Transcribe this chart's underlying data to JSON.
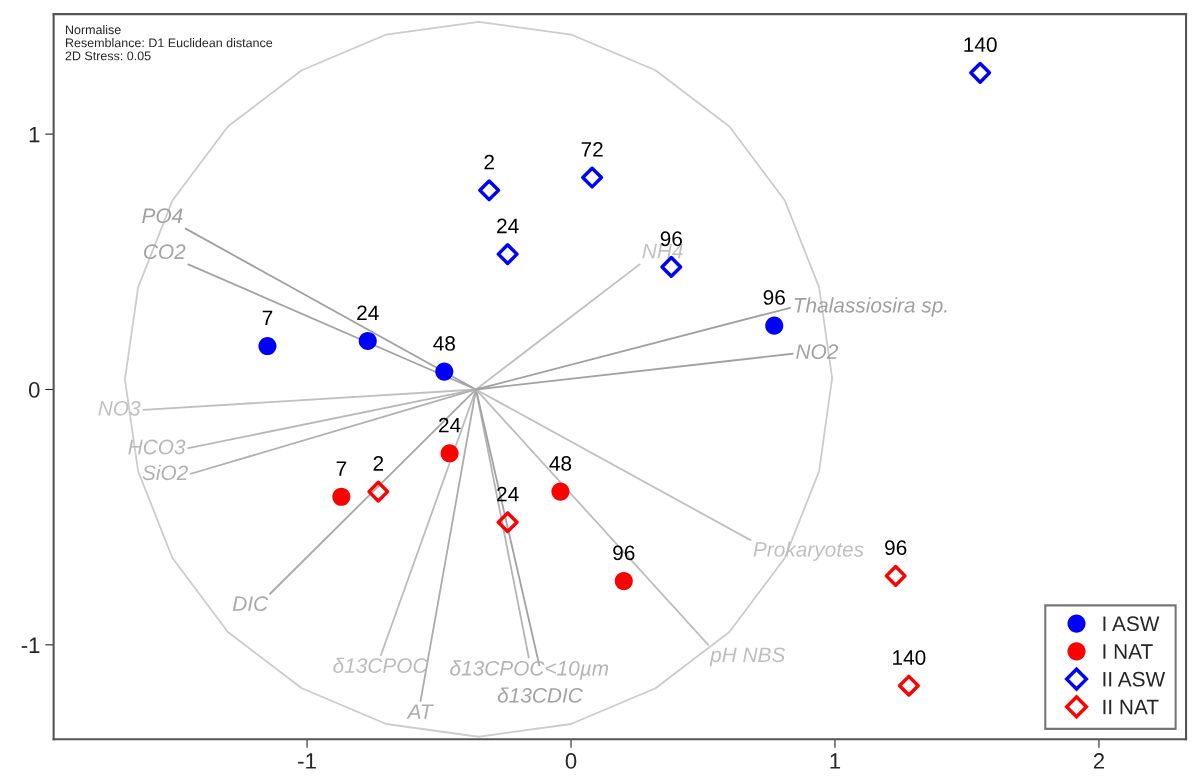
{
  "chart_data": {
    "type": "scatter",
    "xlim": [
      -1.96,
      2.33
    ],
    "ylim": [
      -1.37,
      1.47
    ],
    "xticks": [
      -1,
      0,
      1,
      2
    ],
    "yticks": [
      -1,
      0,
      1
    ],
    "grid": false,
    "legend": "bottom right",
    "annotations": [
      "Normalise",
      "Resemblance: D1 Euclidean distance",
      "2D Stress: 0.05",
      {
        "text": "7",
        "x": -1.15,
        "y": 0.17
      },
      {
        "text": "24",
        "x": -0.77,
        "y": 0.19
      },
      {
        "text": "48",
        "x": -0.48,
        "y": 0.07
      },
      {
        "text": "96",
        "x": 0.77,
        "y": 0.25
      },
      {
        "text": "7",
        "x": -0.87,
        "y": -0.42
      },
      {
        "text": "24",
        "x": -0.46,
        "y": -0.25
      },
      {
        "text": "48",
        "x": -0.04,
        "y": -0.4
      },
      {
        "text": "96",
        "x": 0.2,
        "y": -0.75
      },
      {
        "text": "2",
        "x": -0.31,
        "y": 0.78
      },
      {
        "text": "24",
        "x": -0.24,
        "y": 0.53
      },
      {
        "text": "72",
        "x": 0.08,
        "y": 0.83
      },
      {
        "text": "96",
        "x": 0.38,
        "y": 0.48
      },
      {
        "text": "140",
        "x": 1.55,
        "y": 1.24
      },
      {
        "text": "2",
        "x": -0.73,
        "y": -0.4
      },
      {
        "text": "24",
        "x": -0.24,
        "y": -0.52
      },
      {
        "text": "96",
        "x": 1.23,
        "y": -0.73
      },
      {
        "text": "140",
        "x": 1.28,
        "y": -1.16
      }
    ],
    "series": [
      {
        "type": "line",
        "color": "#cccccc",
        "marker": "none",
        "x": [
          0.99,
          0.94,
          0.81,
          0.6,
          0.32,
          0.0,
          -0.35,
          -0.7,
          -1.02,
          -1.3,
          -1.51,
          -1.64,
          -1.69,
          -1.64,
          -1.51,
          -1.3,
          -1.02,
          -0.7,
          -0.35,
          0.0,
          0.32,
          0.6,
          0.81,
          0.94,
          0.99
        ],
        "values": [
          0.04,
          0.4,
          0.74,
          1.03,
          1.25,
          1.39,
          1.44,
          1.39,
          1.25,
          1.03,
          0.74,
          0.4,
          0.04,
          -0.32,
          -0.66,
          -0.95,
          -1.17,
          -1.31,
          -1.36,
          -1.31,
          -1.17,
          -0.95,
          -0.66,
          -0.32,
          0.05
        ]
      },
      {
        "type": "line",
        "name": "PO4",
        "color": "#a0a0a0",
        "marker": "none",
        "x": [
          -0.36,
          -1.46
        ],
        "values": [
          0.0,
          0.63
        ]
      },
      {
        "type": "line",
        "name": "CO2",
        "color": "#a4a4a4",
        "marker": "none",
        "x": [
          -0.36,
          -1.45
        ],
        "values": [
          0.0,
          0.49
        ]
      },
      {
        "type": "line",
        "name": "NO3",
        "color": "#c0c0c0",
        "marker": "none",
        "x": [
          -0.36,
          -1.62
        ],
        "values": [
          0.0,
          -0.08
        ]
      },
      {
        "type": "line",
        "name": "HCO3",
        "color": "#b8b8b8",
        "marker": "none",
        "x": [
          -0.36,
          -1.45
        ],
        "values": [
          0.0,
          -0.23
        ]
      },
      {
        "type": "line",
        "name": "SiO2",
        "color": "#b0b0b0",
        "marker": "none",
        "x": [
          -0.36,
          -1.44
        ],
        "values": [
          0.0,
          -0.33
        ]
      },
      {
        "type": "line",
        "name": "DIC",
        "color": "#a8a8a8",
        "marker": "none",
        "x": [
          -0.36,
          -1.14
        ],
        "values": [
          0.0,
          -0.8
        ]
      },
      {
        "type": "line",
        "name": "δ13CPOC",
        "color": "#bcbcbc",
        "marker": "none",
        "x": [
          -0.36,
          -0.72
        ],
        "values": [
          0.0,
          -1.04
        ]
      },
      {
        "type": "line",
        "name": "AT",
        "color": "#acacac",
        "marker": "none",
        "x": [
          -0.36,
          -0.57
        ],
        "values": [
          0.0,
          -1.22
        ]
      },
      {
        "type": "line",
        "name": "δ13CPOC<10µm",
        "color": "#b4b4b4",
        "marker": "none",
        "x": [
          -0.36,
          -0.16
        ],
        "values": [
          0.0,
          -1.05
        ]
      },
      {
        "type": "line",
        "name": "δ13CDIC",
        "color": "#a2a2a2",
        "marker": "none",
        "x": [
          -0.36,
          -0.12
        ],
        "values": [
          0.0,
          -1.08
        ]
      },
      {
        "type": "line",
        "name": "pH NBS",
        "color": "#bebebe",
        "marker": "none",
        "x": [
          -0.36,
          0.52
        ],
        "values": [
          0.0,
          -1.0
        ]
      },
      {
        "type": "line",
        "name": "Prokaryotes",
        "color": "#c0c0c0",
        "marker": "none",
        "x": [
          -0.36,
          0.68
        ],
        "values": [
          0.0,
          -0.59
        ]
      },
      {
        "type": "line",
        "name": "NH4",
        "color": "#c0c0c0",
        "marker": "none",
        "x": [
          -0.36,
          0.26
        ],
        "values": [
          0.0,
          0.49
        ]
      },
      {
        "type": "line",
        "name": "Thalassiosira sp.",
        "color": "#a0a0a0",
        "marker": "none",
        "x": [
          -0.36,
          0.83
        ],
        "values": [
          0.0,
          0.32
        ]
      },
      {
        "type": "line",
        "name": "NO2",
        "color": "#a2a2a2",
        "marker": "none",
        "x": [
          -0.36,
          0.84
        ],
        "values": [
          0.0,
          0.14
        ]
      },
      {
        "name": "I ASW",
        "color": "#0000ff",
        "marker": "circle",
        "x": [
          -1.15,
          -0.77,
          -0.48,
          0.77
        ],
        "values": [
          0.17,
          0.19,
          0.07,
          0.25
        ]
      },
      {
        "name": "I NAT",
        "color": "#ff0000",
        "marker": "circle",
        "x": [
          -0.87,
          -0.46,
          -0.04,
          0.2
        ],
        "values": [
          -0.42,
          -0.25,
          -0.4,
          -0.75
        ]
      },
      {
        "name": "II ASW",
        "color": "#0000ff",
        "marker": "diamond",
        "x": [
          -0.31,
          -0.24,
          0.08,
          0.38,
          1.55
        ],
        "values": [
          0.78,
          0.53,
          0.83,
          0.48,
          1.24
        ]
      },
      {
        "name": "II NAT",
        "color": "#ff0000",
        "marker": "diamond",
        "x": [
          -0.73,
          -0.24,
          1.23,
          1.28
        ],
        "values": [
          -0.4,
          -0.52,
          -0.73,
          -1.16
        ]
      }
    ]
  }
}
